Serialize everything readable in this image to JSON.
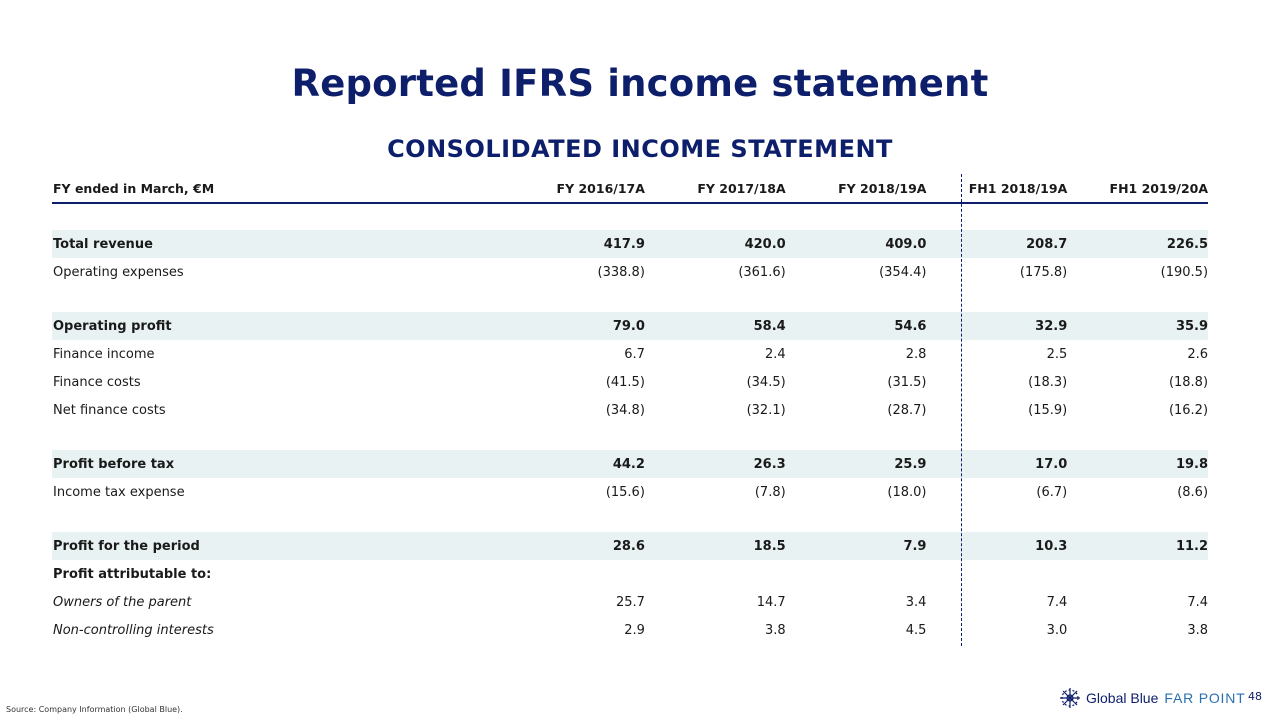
{
  "title": "Reported IFRS income statement",
  "subtitle": "CONSOLIDATED INCOME STATEMENT",
  "table": {
    "header": [
      "FY ended in March, €M",
      "FY 2016/17A",
      "FY 2017/18A",
      "FY 2018/19A",
      "FH1 2018/19A",
      "FH1 2019/20A"
    ],
    "rows": [
      {
        "type": "spacer"
      },
      {
        "type": "highlight",
        "label": "Total revenue",
        "values": [
          "417.9",
          "420.0",
          "409.0",
          "208.7",
          "226.5"
        ]
      },
      {
        "type": "normal",
        "label": "Operating expenses",
        "values": [
          "(338.8)",
          "(361.6)",
          "(354.4)",
          "(175.8)",
          "(190.5)"
        ]
      },
      {
        "type": "spacer"
      },
      {
        "type": "highlight",
        "label": "Operating profit",
        "values": [
          "79.0",
          "58.4",
          "54.6",
          "32.9",
          "35.9"
        ]
      },
      {
        "type": "normal",
        "label": "Finance income",
        "values": [
          "6.7",
          "2.4",
          "2.8",
          "2.5",
          "2.6"
        ]
      },
      {
        "type": "normal",
        "label": "Finance costs",
        "values": [
          "(41.5)",
          "(34.5)",
          "(31.5)",
          "(18.3)",
          "(18.8)"
        ]
      },
      {
        "type": "normal",
        "label": "Net finance costs",
        "values": [
          "(34.8)",
          "(32.1)",
          "(28.7)",
          "(15.9)",
          "(16.2)"
        ]
      },
      {
        "type": "spacer"
      },
      {
        "type": "highlight",
        "label": "Profit before tax",
        "values": [
          "44.2",
          "26.3",
          "25.9",
          "17.0",
          "19.8"
        ]
      },
      {
        "type": "normal",
        "label": "Income tax expense",
        "values": [
          "(15.6)",
          "(7.8)",
          "(18.0)",
          "(6.7)",
          "(8.6)"
        ]
      },
      {
        "type": "spacer"
      },
      {
        "type": "highlight",
        "label": "Profit for the period",
        "values": [
          "28.6",
          "18.5",
          "7.9",
          "10.3",
          "11.2"
        ]
      },
      {
        "type": "bold",
        "label": "Profit attributable to:",
        "values": [
          "",
          "",
          "",
          "",
          ""
        ]
      },
      {
        "type": "italic",
        "label": "Owners of the parent",
        "values": [
          "25.7",
          "14.7",
          "3.4",
          "7.4",
          "7.4"
        ]
      },
      {
        "type": "italic",
        "label": "Non-controlling interests",
        "values": [
          "2.9",
          "3.8",
          "4.5",
          "3.0",
          "3.8"
        ]
      }
    ]
  },
  "source": "Source: Company Information (Global Blue).",
  "logo": {
    "brand": "Global Blue",
    "product": "FAR POINT",
    "icon": "global-blue-snowflake-icon"
  },
  "page_number": "48",
  "colors": {
    "navy": "#0d1e6b",
    "highlight_row": "#e8f2f2",
    "accent_blue": "#2a6fb0"
  }
}
